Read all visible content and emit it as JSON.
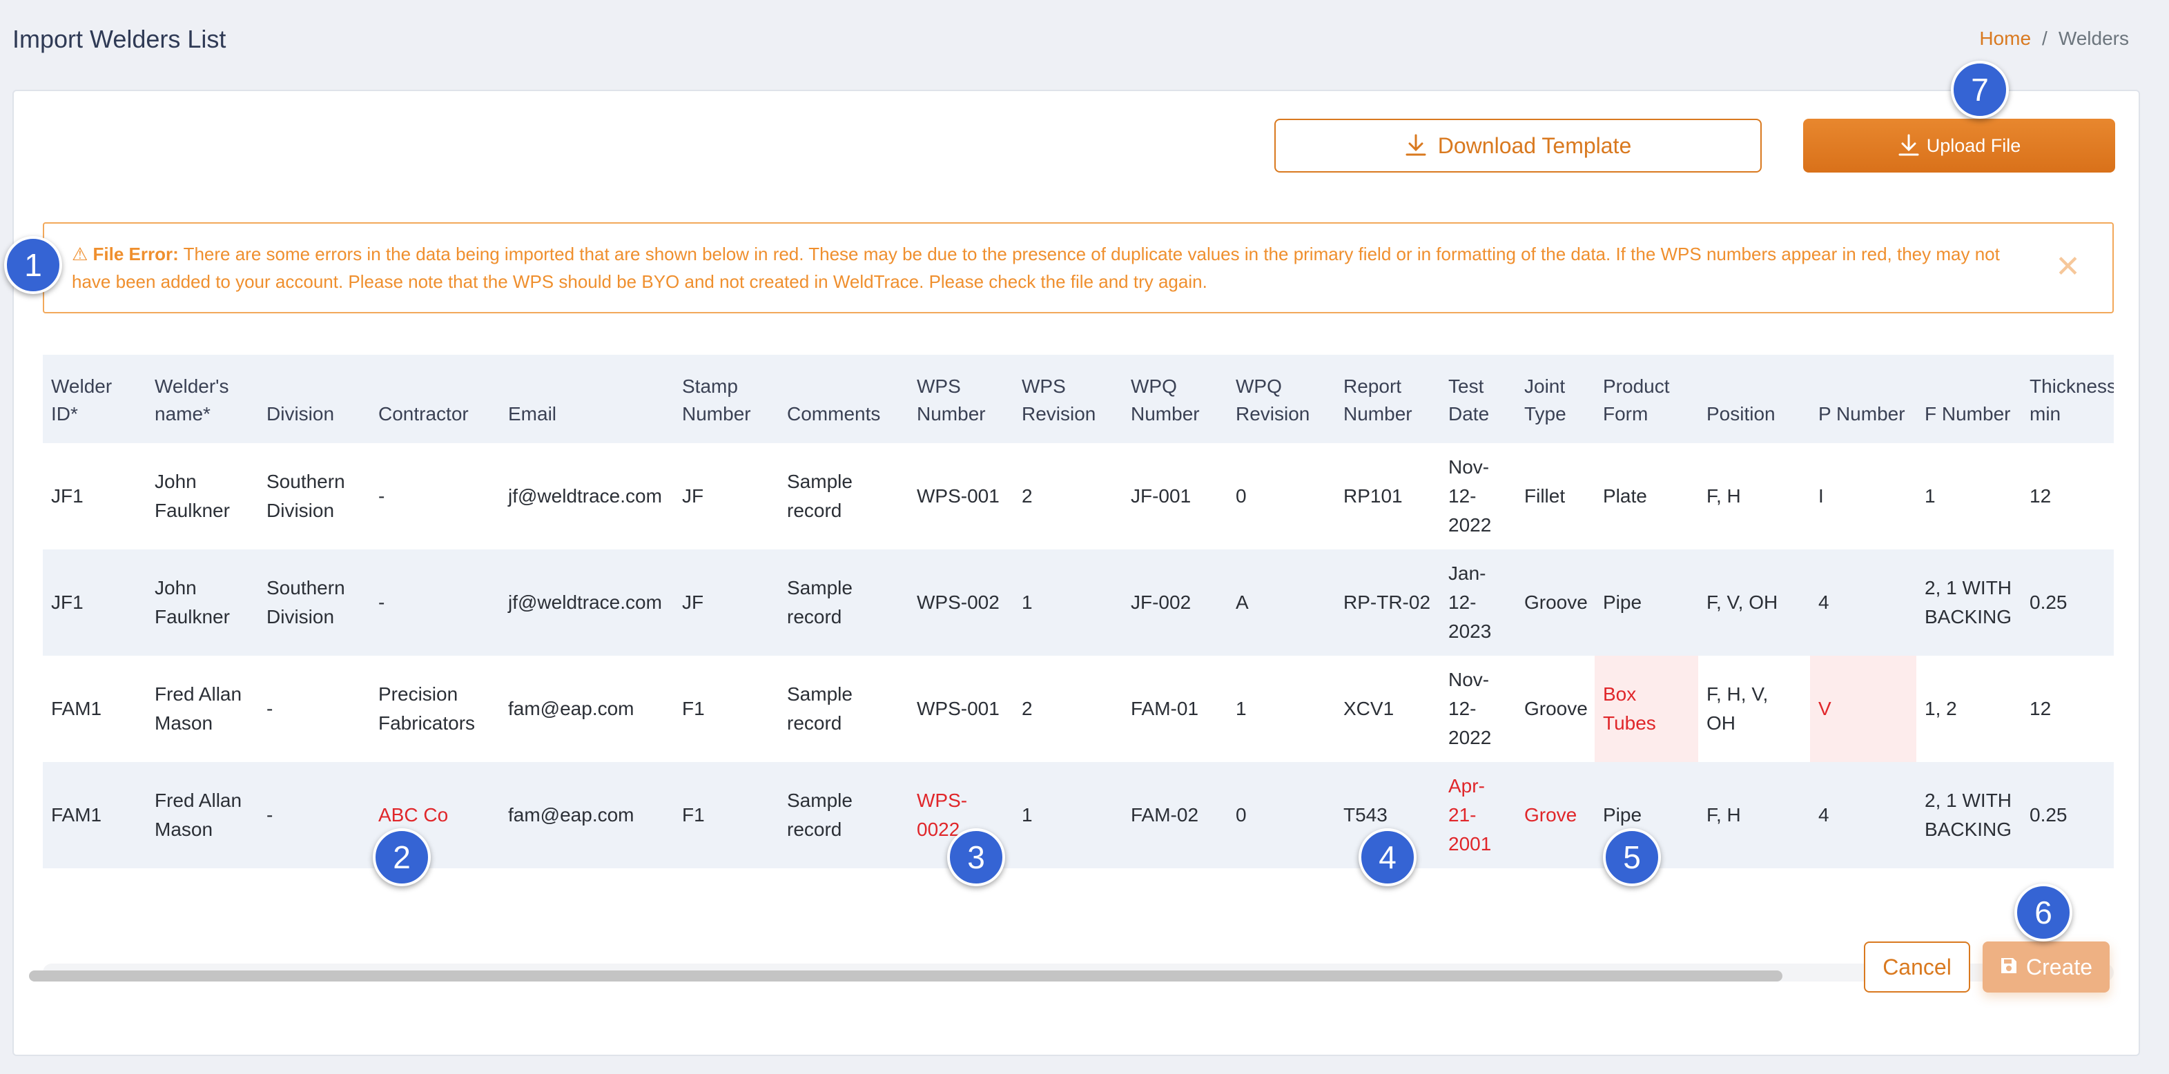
{
  "header": {
    "title": "Import Welders List",
    "breadcrumb": {
      "home": "Home",
      "separator": "/",
      "current": "Welders"
    }
  },
  "actions": {
    "download_label": "Download Template",
    "upload_label": "Upload File"
  },
  "alert": {
    "icon": "warning-icon",
    "lead": "File Error:",
    "message": "There are some errors in the data being imported that are shown below in red. These may be due to the presence of duplicate values in the primary field or in formatting of the data. If the WPS numbers appear in red, they may not have been added to your account. Please note that the WPS should be BYO and not created in WeldTrace. Please check the file and try again.",
    "close": "✕"
  },
  "table": {
    "columns": [
      "Welder ID*",
      "Welder's name*",
      "Division",
      "Contractor",
      "Email",
      "Stamp Number",
      "Comments",
      "WPS Number",
      "WPS Revision",
      "WPQ Number",
      "WPQ Revision",
      "Report Number",
      "Test Date",
      "Joint Type",
      "Product Form",
      "Position",
      "P Number",
      "F Number",
      "Thickness min"
    ],
    "rows": [
      {
        "cells": [
          "JF1",
          "John Faulkner",
          "Southern Division",
          "-",
          "jf@weldtrace.com",
          "JF",
          "Sample record",
          "WPS-001",
          "2",
          "JF-001",
          "0",
          "RP101",
          "Nov-12-2022",
          "Fillet",
          "Plate",
          "F, H",
          "I",
          "1",
          "12"
        ],
        "errors": []
      },
      {
        "cells": [
          "JF1",
          "John Faulkner",
          "Southern Division",
          "-",
          "jf@weldtrace.com",
          "JF",
          "Sample record",
          "WPS-002",
          "1",
          "JF-002",
          "A",
          "RP-TR-02",
          "Jan-12-2023",
          "Groove",
          "Pipe",
          "F, V, OH",
          "4",
          "2, 1 WITH BACKING",
          "0.25"
        ],
        "errors": []
      },
      {
        "cells": [
          "FAM1",
          "Fred Allan Mason",
          "-",
          "Precision Fabricators",
          "fam@eap.com",
          "F1",
          "Sample record",
          "WPS-001",
          "2",
          "FAM-01",
          "1",
          "XCV1",
          "Nov-12-2022",
          "Groove",
          "Box Tubes",
          "F, H, V, OH",
          "V",
          "1, 2",
          "12"
        ],
        "errors": [
          14,
          16
        ]
      },
      {
        "cells": [
          "FAM1",
          "Fred Allan Mason",
          "-",
          "ABC Co",
          "fam@eap.com",
          "F1",
          "Sample record",
          "WPS-0022",
          "1",
          "FAM-02",
          "0",
          "T543",
          "Apr-21-2001",
          "Grove",
          "Pipe",
          "F, H",
          "4",
          "2, 1 WITH BACKING",
          "0.25"
        ],
        "errors": [
          3,
          7,
          12,
          13
        ]
      }
    ]
  },
  "footer": {
    "cancel_label": "Cancel",
    "create_label": "Create",
    "create_icon": "save-icon"
  },
  "markers": [
    "1",
    "2",
    "3",
    "4",
    "5",
    "6",
    "7"
  ],
  "colors": {
    "accent": "#d9791f",
    "error_text": "#e0262a",
    "error_bg": "#fdecec",
    "alert": "#ef8f2e",
    "marker": "#3564d4"
  }
}
